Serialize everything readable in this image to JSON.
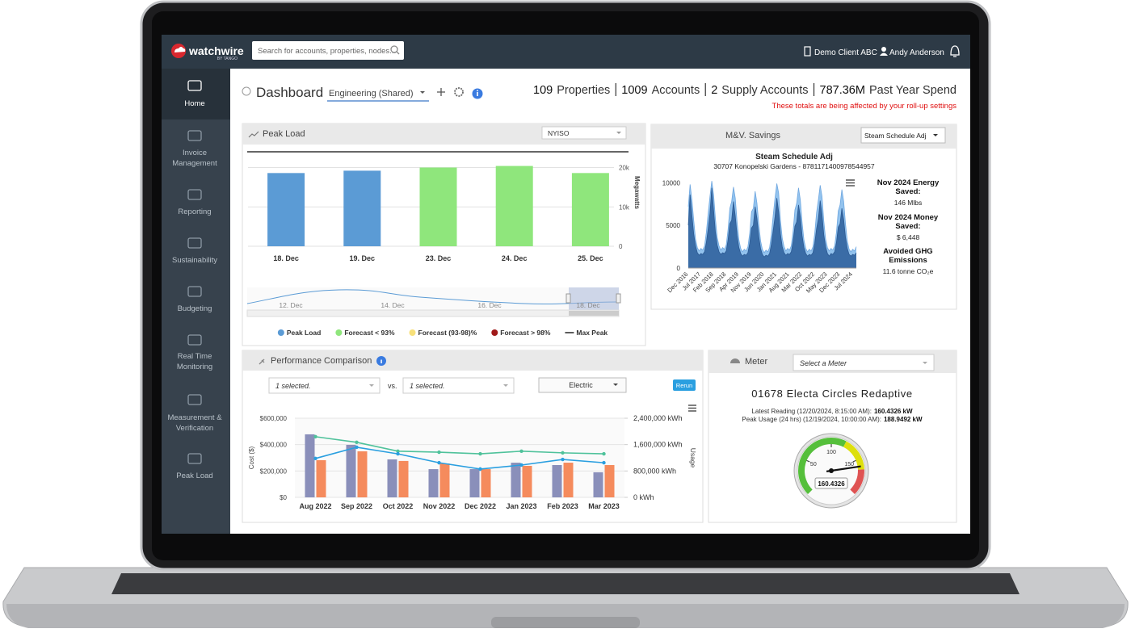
{
  "header": {
    "logo": "watchwire",
    "logo_tagline": "BY TANGO",
    "search_placeholder": "Search for accounts, properties, nodes...",
    "client": "Demo Client ABC",
    "user": "Andy Anderson"
  },
  "sidebar": [
    {
      "lines": [
        "Home"
      ]
    },
    {
      "lines": [
        "Invoice",
        "Management"
      ]
    },
    {
      "lines": [
        "Reporting"
      ]
    },
    {
      "lines": [
        "Sustainability"
      ]
    },
    {
      "lines": [
        "Budgeting"
      ]
    },
    {
      "lines": [
        "Real Time",
        "Monitoring"
      ]
    },
    {
      "lines": [
        "Measurement &",
        "Verification"
      ]
    },
    {
      "lines": [
        "Peak Load"
      ]
    }
  ],
  "dashboard": {
    "title": "Dashboard",
    "view": "Engineering (Shared)",
    "stats": [
      {
        "value": 109,
        "label": "Properties"
      },
      {
        "value": 1009,
        "label": "Accounts"
      },
      {
        "value": 2,
        "label": "Supply Accounts"
      },
      {
        "value": "787.36M",
        "label": "Past Year Spend"
      }
    ],
    "notice": "These totals are being affected by your roll-up settings"
  },
  "peak_load": {
    "title": "Peak Load",
    "market": "NYISO",
    "chart": {
      "type": "bar",
      "categories": [
        "18. Dec",
        "19. Dec",
        "23. Dec",
        "24. Dec",
        "25. Dec"
      ],
      "values": [
        18600,
        19200,
        20000,
        20400,
        18600
      ],
      "colors": [
        "#5b9bd5",
        "#5b9bd5",
        "#8fe67c",
        "#8fe67c",
        "#8fe67c"
      ],
      "max_peak": 24000,
      "ylim": [
        0,
        24000
      ],
      "yticks": [
        0,
        {
          "value": 10000,
          "label": "10k"
        },
        {
          "value": 20000,
          "label": "20k"
        }
      ],
      "y_label": "Megawatts",
      "grid": true,
      "legend": [
        {
          "name": "Peak Load",
          "color": "#5b9bd5",
          "marker": "circle"
        },
        {
          "name": "Forecast < 93%",
          "color": "#8fe67c",
          "marker": "circle"
        },
        {
          "name": "Forecast (93-98)%",
          "color": "#f7e07a",
          "marker": "circle"
        },
        {
          "name": "Forecast > 98%",
          "color": "#a01919",
          "marker": "circle"
        },
        {
          "name": "Max Peak",
          "color": "#333333",
          "marker": "line"
        }
      ]
    },
    "navigator_labels": [
      "12. Dec",
      "14. Dec",
      "16. Dec",
      "18. Dec"
    ]
  },
  "mv_savings": {
    "title": "M&V. Savings",
    "selection": "Steam Schedule Adj",
    "chart": {
      "type": "area",
      "title": "Steam Schedule Adj",
      "subtitle": "30707 Konopelski Gardens - 8781171400978544957",
      "categories": [
        "Dec 2016",
        null,
        null,
        null,
        null,
        null,
        null,
        "Jul 2017",
        null,
        null,
        null,
        null,
        null,
        null,
        "Feb 2018",
        null,
        null,
        null,
        null,
        null,
        null,
        "Sep 2018",
        null,
        null,
        null,
        null,
        null,
        null,
        "Apr 2019",
        null,
        null,
        null,
        null,
        null,
        null,
        "Nov 2019",
        null,
        null,
        null,
        null,
        null,
        null,
        "Jun 2020",
        null,
        null,
        null,
        null,
        null,
        null,
        "Jan 2021",
        null,
        null,
        null,
        null,
        null,
        null,
        "Aug 2021",
        null,
        null,
        null,
        null,
        null,
        null,
        "Mar 2022",
        null,
        null,
        null,
        null,
        null,
        null,
        "Oct 2022",
        null,
        null,
        null,
        null,
        null,
        null,
        "May 2023",
        null,
        null,
        null,
        null,
        null,
        null,
        "Dec 2023",
        null,
        null,
        null,
        null,
        null,
        null,
        "Jul 2024",
        null,
        null
      ],
      "series": [
        {
          "color": "#93c3ee",
          "values": [
            7200,
            9800,
            8000,
            5600,
            3400,
            2400,
            2000,
            2300,
            2100,
            2600,
            4200,
            6400,
            8400,
            10200,
            8600,
            5800,
            3600,
            2600,
            2100,
            2400,
            2200,
            2700,
            4500,
            7000,
            7800,
            9500,
            8200,
            5400,
            3300,
            2300,
            1900,
            2200,
            2000,
            2500,
            4100,
            6600,
            7000,
            9000,
            7600,
            5200,
            3200,
            2200,
            1800,
            2100,
            1900,
            2400,
            4000,
            6200,
            8200,
            9900,
            8800,
            5600,
            3500,
            2500,
            2000,
            2300,
            2100,
            2600,
            4300,
            6800,
            7600,
            9400,
            8000,
            5300,
            3300,
            2300,
            1900,
            2200,
            2000,
            2500,
            4100,
            6500,
            8000,
            9700,
            8400,
            5500,
            3400,
            2400,
            2000,
            2300,
            2100,
            2600,
            4200,
            6700,
            7400,
            9200,
            7800,
            5200,
            3200,
            2200,
            1900,
            2200,
            2000,
            2500
          ]
        },
        {
          "color": "#3a6ca6",
          "values": [
            5000,
            8600,
            6200,
            4000,
            2600,
            1800,
            1500,
            1700,
            1600,
            1900,
            3000,
            4600,
            6400,
            9400,
            6800,
            4200,
            2700,
            1900,
            1600,
            1800,
            1700,
            2000,
            3300,
            5200,
            5600,
            7800,
            6100,
            3800,
            2400,
            1700,
            1400,
            1600,
            1500,
            1800,
            2900,
            4700,
            5000,
            7200,
            5800,
            3700,
            2300,
            1600,
            1300,
            1500,
            1400,
            1700,
            2800,
            4400,
            6000,
            8200,
            6600,
            4000,
            2500,
            1800,
            1500,
            1700,
            1600,
            1900,
            3100,
            4900,
            5400,
            7400,
            6000,
            3800,
            2400,
            1700,
            1400,
            1600,
            1500,
            1800,
            2900,
            4600,
            5800,
            7900,
            6300,
            3900,
            2500,
            1700,
            1400,
            1700,
            1600,
            1900,
            3000,
            4800,
            5200,
            7000,
            5700,
            3600,
            2300,
            1600,
            1400,
            1600,
            1500,
            1800
          ]
        }
      ],
      "ylim": [
        0,
        10500
      ],
      "yticks": [
        0,
        5000,
        10000
      ]
    },
    "stats": [
      {
        "label": [
          "Nov 2024 Energy",
          "Saved:"
        ],
        "value": "146 Mlbs"
      },
      {
        "label": [
          "Nov 2024 Money",
          "Saved:"
        ],
        "value": "$ 6,448"
      },
      {
        "label": [
          "Avoided GHG",
          "Emissions"
        ],
        "value": "11.6 tonne CO₂e"
      }
    ]
  },
  "performance": {
    "title": "Performance Comparison",
    "selection_a": "1 selected.",
    "versus": "vs.",
    "selection_b": "1 selected.",
    "commodity": "Electric",
    "action": "Rerun",
    "chart": {
      "type": "combo",
      "categories": [
        "Aug 2022",
        "Sep 2022",
        "Oct 2022",
        "Nov 2022",
        "Dec 2022",
        "Jan 2023",
        "Feb 2023",
        "Mar 2023"
      ],
      "series": [
        {
          "kind": "bar",
          "color": "#8a8fba",
          "values": [
            478000,
            398000,
            288000,
            214000,
            214000,
            263000,
            245000,
            190000
          ]
        },
        {
          "kind": "bar",
          "color": "#f58b5d",
          "values": [
            282000,
            349000,
            276000,
            257000,
            214000,
            239000,
            263000,
            245000
          ]
        },
        {
          "kind": "line",
          "axis": "y2",
          "color": "#4fc29b",
          "values": [
            1840000,
            1670000,
            1400000,
            1370000,
            1320000,
            1400000,
            1350000,
            1320000
          ]
        },
        {
          "kind": "line",
          "axis": "y2",
          "color": "#2a9fe0",
          "values": [
            1180000,
            1520000,
            1320000,
            1050000,
            860000,
            980000,
            1150000,
            1050000
          ]
        }
      ],
      "ylim": [
        0,
        600000
      ],
      "yticks": [
        {
          "value": 0,
          "label": "$0"
        },
        {
          "value": 200000,
          "label": "$200,000"
        },
        {
          "value": 400000,
          "label": "$400,000"
        },
        {
          "value": 600000,
          "label": "$600,000"
        }
      ],
      "y2lim": [
        0,
        2400000
      ],
      "y2ticks": [
        {
          "value": 0,
          "label": "0 kWh"
        },
        {
          "value": 800000,
          "label": "800,000 kWh"
        },
        {
          "value": 1600000,
          "label": "1,600,000 kWh"
        },
        {
          "value": 2400000,
          "label": "2,400,000 kWh"
        }
      ],
      "y_label": "Cost ($)",
      "y2_label": "Usage",
      "grid": true
    }
  },
  "meter": {
    "title": "Meter",
    "placeholder": "Select a Meter",
    "name": "01678 Electa Circles Redaptive",
    "readings": [
      {
        "label": "Latest Reading (12/20/2024, 8:15:00 AM):",
        "value": "160.4326 kW"
      },
      {
        "label": "Peak Usage (24 hrs) (12/19/2024, 10:00:00 AM):",
        "value": "188.9492 kW"
      }
    ],
    "gauge": {
      "type": "gauge",
      "value": 160.4326,
      "ylim": [
        0,
        200
      ],
      "yticks": [
        50,
        100,
        150
      ],
      "bands": [
        {
          "from": 0,
          "to": 120,
          "color": "#55bf3b"
        },
        {
          "from": 120,
          "to": 165,
          "color": "#dddf0d"
        },
        {
          "from": 165,
          "to": 200,
          "color": "#df5353"
        }
      ]
    }
  }
}
